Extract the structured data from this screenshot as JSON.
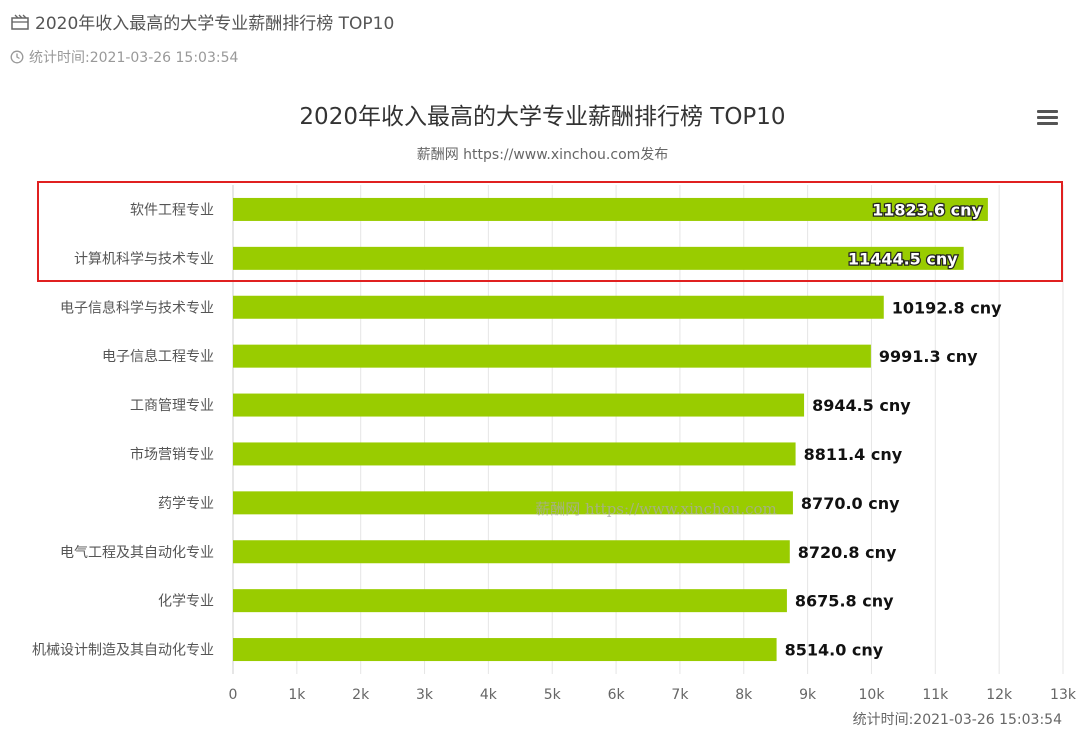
{
  "header": {
    "title": "2020年收入最高的大学专业薪酬排行榜 TOP10",
    "title_icon": "calendar-icon",
    "time": "统计时间:2021-03-26 15:03:54",
    "time_icon": "clock-icon"
  },
  "chart": {
    "menu_icon": "hamburger-menu-icon",
    "footer_time": "统计时间:2021-03-26 15:03:54"
  },
  "chart_data": {
    "type": "bar",
    "orientation": "horizontal",
    "title": "2020年收入最高的大学专业薪酬排行榜 TOP10",
    "subtitle": "薪酬网 https://www.xinchou.com发布",
    "watermark": "薪酬网 https://www.xinchou.com",
    "categories": [
      "软件工程专业",
      "计算机科学与技术专业",
      "电子信息科学与技术专业",
      "电子信息工程专业",
      "工商管理专业",
      "市场营销专业",
      "药学专业",
      "电气工程及其自动化专业",
      "化学专业",
      "机械设计制造及其自动化专业"
    ],
    "values": [
      11823.6,
      11444.5,
      10192.8,
      9991.3,
      8944.5,
      8811.4,
      8770.0,
      8720.8,
      8675.8,
      8514.0
    ],
    "data_labels": [
      "11823.6 cny",
      "11444.5 cny",
      "10192.8 cny",
      "9991.3 cny",
      "8944.5 cny",
      "8811.4 cny",
      "8770.0 cny",
      "8720.8 cny",
      "8675.8 cny",
      "8514.0 cny"
    ],
    "xlim": [
      0,
      13000
    ],
    "xticks": [
      "0",
      "1k",
      "2k",
      "3k",
      "4k",
      "5k",
      "6k",
      "7k",
      "8k",
      "9k",
      "10k",
      "11k",
      "12k",
      "13k"
    ],
    "grid": true,
    "colors": {
      "bar": "#99cc00",
      "grid": "#e6e6e6",
      "highlight_box": "#e02020"
    },
    "highlighted_categories": [
      0,
      1
    ]
  }
}
